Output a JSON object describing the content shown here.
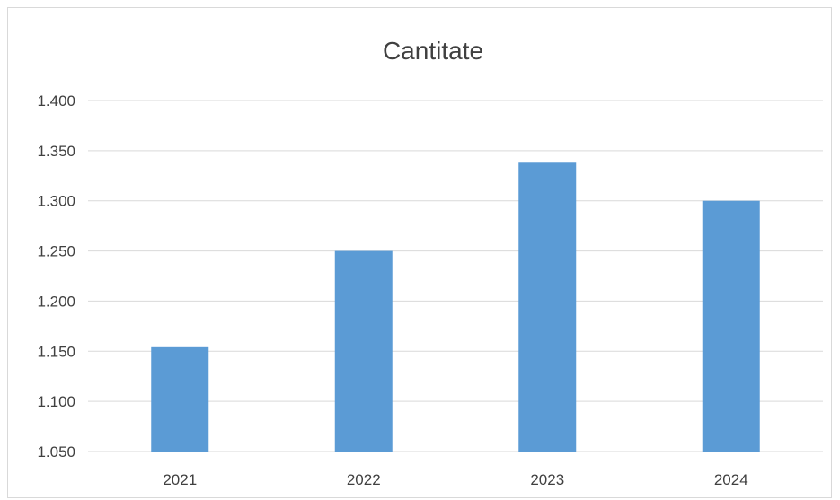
{
  "chart_data": {
    "type": "bar",
    "title": "Cantitate",
    "categories": [
      "2021",
      "2022",
      "2023",
      "2024"
    ],
    "values": [
      1154,
      1250,
      1338,
      1300
    ],
    "ylim": [
      1050,
      1400
    ],
    "yticks": [
      1050,
      1100,
      1150,
      1200,
      1250,
      1300,
      1350,
      1400
    ],
    "ytick_labels": [
      "1.050",
      "1.100",
      "1.150",
      "1.200",
      "1.250",
      "1.300",
      "1.350",
      "1.400"
    ],
    "xlabel": "",
    "ylabel": "",
    "grid": true,
    "legend": "none",
    "bar_color": "#5B9BD5",
    "gridline_color": "#d9d9d9",
    "text_color": "#404040"
  }
}
